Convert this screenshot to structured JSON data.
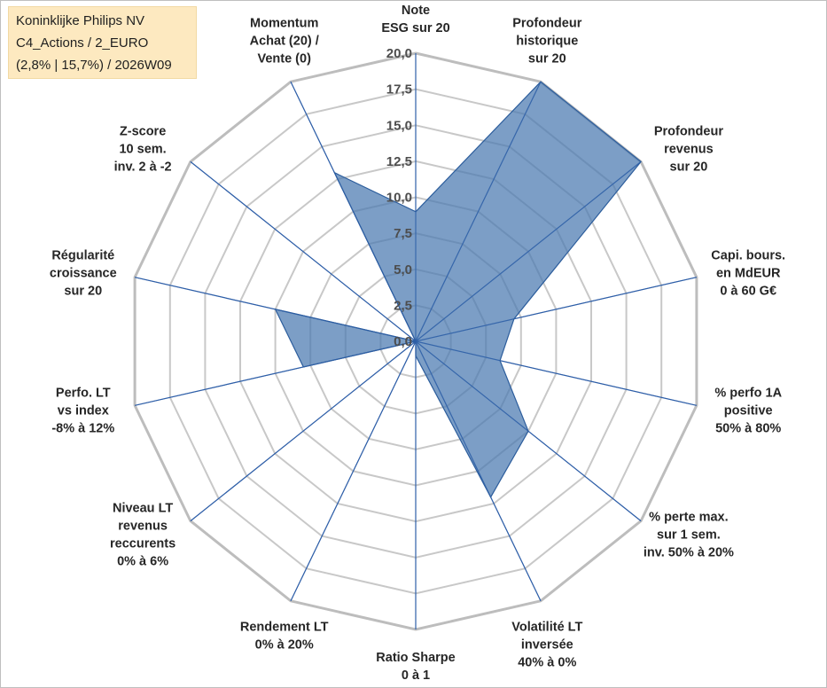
{
  "title_box": {
    "line1": "Koninklijke Philips NV",
    "line2": "C4_Actions / 2_EURO",
    "line3": "(2,8% | 15,7%) / 2026W09"
  },
  "chart_data": {
    "type": "radar",
    "rmin": 0,
    "rmax": 20,
    "ticks": [
      "0,0",
      "2,5",
      "5,0",
      "7,5",
      "10,0",
      "12,5",
      "15,0",
      "17,5",
      "20,0"
    ],
    "categories": [
      [
        "Note",
        "ESG sur 20"
      ],
      [
        "Profondeur",
        "historique",
        "sur 20"
      ],
      [
        "Profondeur",
        "revenus",
        "sur 20"
      ],
      [
        "Capi. bours.",
        "en MdEUR",
        "0 à 60 G€"
      ],
      [
        "% perfo 1A",
        "positive",
        "50% à 80%"
      ],
      [
        "% perte max.",
        "sur 1 sem.",
        "inv. 50% à 20%"
      ],
      [
        "Volatilité LT",
        "inversée",
        "40% à 0%"
      ],
      [
        "Ratio Sharpe",
        "0 à 1"
      ],
      [
        "Rendement LT",
        "0% à 20%"
      ],
      [
        "Niveau LT",
        "revenus",
        "reccurents",
        "0% à 6%"
      ],
      [
        "Perfo. LT",
        "vs index",
        "-8% à 12%"
      ],
      [
        "Régularité",
        "croissance",
        "sur 20"
      ],
      [
        "Z-score",
        "10 sem.",
        "inv. 2 à -2"
      ],
      [
        "Momentum",
        "Achat (20) /",
        "Vente (0)"
      ]
    ],
    "values": [
      9,
      20,
      20,
      7,
      6,
      10,
      12,
      1,
      0,
      0,
      8,
      10,
      0,
      13
    ],
    "colors": {
      "fill": "#4a78b0",
      "outline": "#2c5d9c",
      "spoke": "#2f5fa8",
      "grid": "#c8c8c8",
      "outer": "#bdbdbd"
    }
  }
}
